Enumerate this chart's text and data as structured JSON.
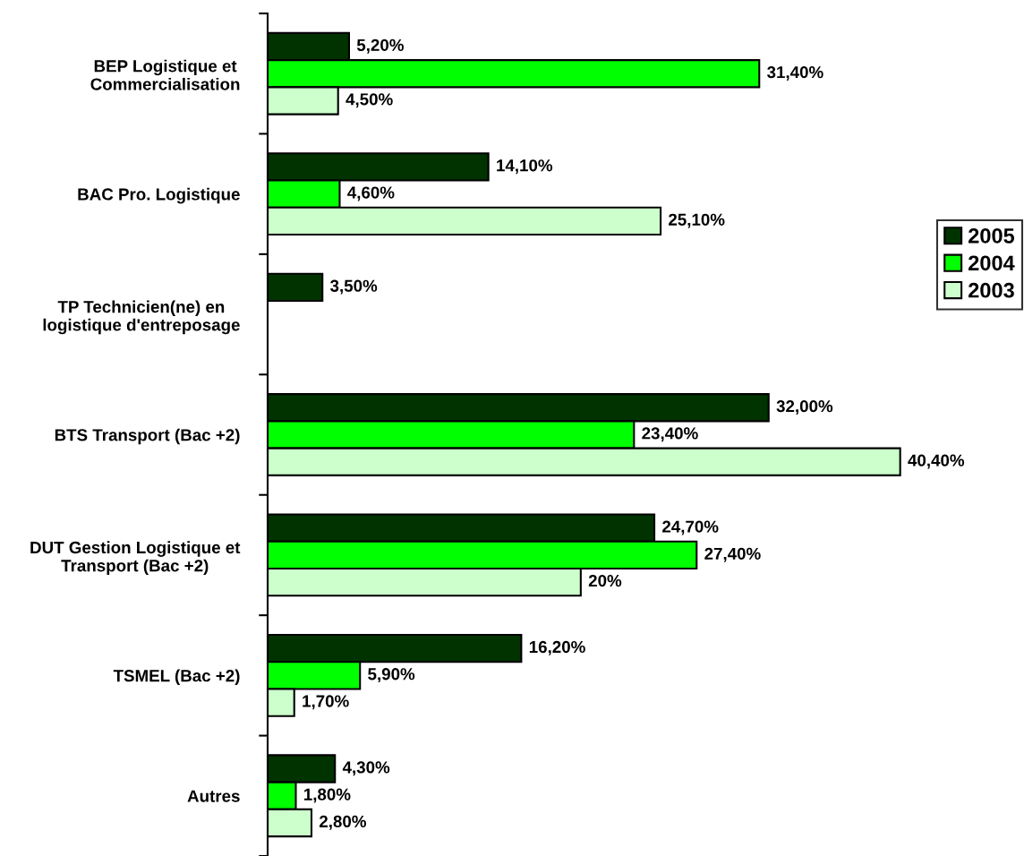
{
  "chart_data": {
    "type": "bar",
    "orientation": "horizontal",
    "categories": [
      "BEP Logistique et\nCommercialisation",
      "BAC Pro. Logistique",
      "TP Technicien(ne) en\nlogistique d'entreposage",
      "BTS Transport (Bac +2)",
      "DUT Gestion Logistique et\nTransport (Bac +2)",
      "TSMEL (Bac +2)",
      "Autres"
    ],
    "series": [
      {
        "name": "2005",
        "color": "#003300",
        "values": [
          5.2,
          14.1,
          3.5,
          32.0,
          24.7,
          16.2,
          4.3
        ],
        "value_labels": [
          "5,20%",
          "14,10%",
          "3,50%",
          "32,00%",
          "24,70%",
          "16,20%",
          "4,30%"
        ]
      },
      {
        "name": "2004",
        "color": "#00ff00",
        "values": [
          31.4,
          4.6,
          null,
          23.4,
          27.4,
          5.9,
          1.8
        ],
        "value_labels": [
          "31,40%",
          "4,60%",
          null,
          "23,40%",
          "27,40%",
          "5,90%",
          "1,80%"
        ]
      },
      {
        "name": "2003",
        "color": "#ccffcc",
        "values": [
          4.5,
          25.1,
          null,
          40.4,
          20,
          1.7,
          2.8
        ],
        "value_labels": [
          "4,50%",
          "25,10%",
          null,
          "40,40%",
          "20%",
          "1,70%",
          "2,80%"
        ]
      }
    ],
    "tick_labels": "y",
    "legend": "right"
  }
}
